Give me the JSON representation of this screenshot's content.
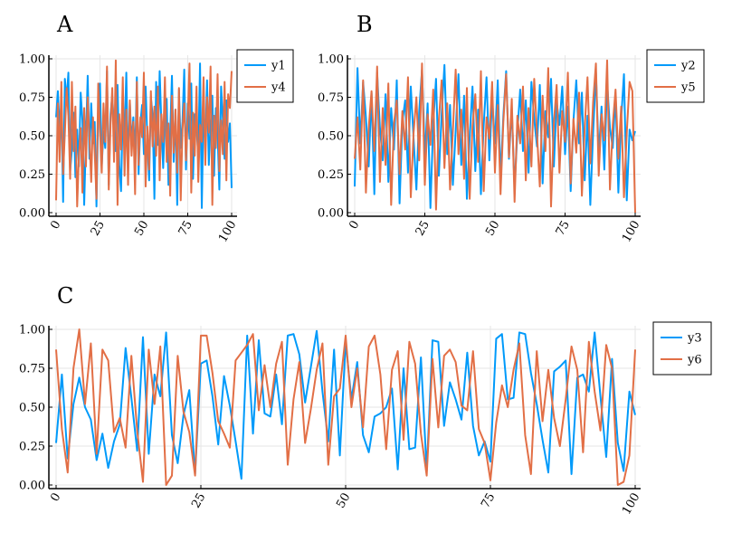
{
  "chart_data": [
    {
      "type": "line",
      "title": "A",
      "xlim": [
        0,
        100
      ],
      "ylim": [
        0,
        1
      ],
      "xticks": [
        "0",
        "25",
        "50",
        "75",
        "100"
      ],
      "yticks": [
        "0.00",
        "0.25",
        "0.50",
        "0.75",
        "1.00"
      ],
      "grid": true,
      "legend_position": "outer-top-right",
      "series": [
        {
          "name": "y1",
          "color": "#009AFA",
          "values": [
            0.62,
            0.79,
            0.55,
            0.71,
            0.07,
            0.87,
            0.73,
            0.91,
            0.27,
            0.41,
            0.65,
            0.23,
            0.54,
            0.3,
            0.78,
            0.6,
            0.05,
            0.48,
            0.89,
            0.35,
            0.71,
            0.45,
            0.59,
            0.04,
            0.66,
            0.84,
            0.3,
            0.53,
            0.42,
            0.92,
            0.18,
            0.64,
            0.76,
            0.55,
            0.4,
            0.83,
            0.31,
            0.14,
            0.68,
            0.5,
            0.91,
            0.27,
            0.72,
            0.45,
            0.62,
            0.35,
            0.88,
            0.25,
            0.58,
            0.7,
            0.38,
            0.82,
            0.47,
            0.21,
            0.75,
            0.63,
            0.09,
            0.85,
            0.44,
            0.92,
            0.57,
            0.29,
            0.61,
            0.74,
            0.18,
            0.52,
            0.89,
            0.33,
            0.67,
            0.05,
            0.8,
            0.42,
            0.59,
            0.93,
            0.28,
            0.71,
            0.48,
            0.84,
            0.22,
            0.64,
            0.55,
            0.37,
            0.97,
            0.03,
            0.69,
            0.43,
            0.86,
            0.31,
            0.57,
            0.76,
            0.24,
            0.68,
            0.51,
            0.15,
            0.82,
            0.6,
            0.35,
            0.73,
            0.46,
            0.58,
            0.16
          ]
        },
        {
          "name": "y4",
          "color": "#E26F46",
          "values": [
            0.08,
            0.71,
            0.33,
            0.85,
            0.25,
            0.52,
            0.81,
            0.63,
            0.22,
            0.85,
            0.4,
            0.69,
            0.04,
            0.37,
            0.55,
            0.13,
            0.68,
            0.3,
            0.75,
            0.49,
            0.2,
            0.62,
            0.39,
            0.09,
            0.84,
            0.53,
            0.26,
            0.71,
            0.46,
            0.95,
            0.15,
            0.57,
            0.81,
            0.33,
            0.99,
            0.05,
            0.64,
            0.41,
            0.88,
            0.24,
            0.67,
            0.18,
            0.73,
            0.37,
            0.59,
            0.12,
            0.85,
            0.31,
            0.62,
            0.49,
            0.91,
            0.17,
            0.56,
            0.28,
            0.79,
            0.43,
            0.69,
            0.37,
            0.82,
            0.21,
            0.64,
            0.46,
            0.88,
            0.33,
            0.58,
            0.11,
            0.76,
            0.39,
            0.67,
            0.26,
            0.81,
            0.08,
            0.54,
            0.71,
            0.34,
            0.61,
            0.97,
            0.13,
            0.65,
            0.37,
            0.82,
            0.2,
            0.57,
            0.46,
            0.88,
            0.31,
            0.75,
            0.52,
            0.95,
            0.05,
            0.63,
            0.42,
            0.9,
            0.27,
            0.6,
            0.38,
            0.85,
            0.21,
            0.77,
            0.68,
            0.92
          ]
        }
      ]
    },
    {
      "type": "line",
      "title": "B",
      "xlim": [
        0,
        100
      ],
      "ylim": [
        0,
        1
      ],
      "xticks": [
        "0",
        "25",
        "50",
        "75",
        "100"
      ],
      "yticks": [
        "0.00",
        "0.25",
        "0.50",
        "0.75",
        "1.00"
      ],
      "grid": true,
      "legend_position": "outer-top-right",
      "series": [
        {
          "name": "y2",
          "color": "#009AFA",
          "values": [
            0.17,
            0.94,
            0.45,
            0.85,
            0.62,
            0.3,
            0.78,
            0.12,
            0.91,
            0.55,
            0.34,
            0.77,
            0.2,
            0.68,
            0.41,
            0.86,
            0.06,
            0.59,
            0.73,
            0.26,
            0.82,
            0.48,
            0.15,
            0.66,
            0.93,
            0.36,
            0.71,
            0.03,
            0.58,
            0.87,
            0.24,
            0.64,
            0.96,
            0.38,
            0.7,
            0.18,
            0.53,
            0.9,
            0.31,
            0.76,
            0.09,
            0.49,
            0.82,
            0.27,
            0.67,
            0.12,
            0.57,
            0.88,
            0.34,
            0.74,
            0.45,
            0.86,
            0.22,
            0.63,
            0.92,
            0.35,
            0.68,
            0.16,
            0.52,
            0.8,
            0.4,
            0.73,
            0.26,
            0.85,
            0.61,
            0.43,
            0.83,
            0.19,
            0.66,
            0.49,
            0.87,
            0.3,
            0.72,
            0.57,
            0.82,
            0.38,
            0.69,
            0.14,
            0.6,
            0.86,
            0.45,
            0.78,
            0.21,
            0.63,
            0.05,
            0.52,
            0.91,
            0.37,
            0.69,
            0.28,
            0.85,
            0.55,
            0.42,
            0.77,
            0.13,
            0.61,
            0.9,
            0.08,
            0.54,
            0.47,
            0.53
          ]
        },
        {
          "name": "y5",
          "color": "#E26F46",
          "values": [
            0.35,
            0.62,
            0.28,
            0.86,
            0.13,
            0.55,
            0.79,
            0.4,
            0.95,
            0.2,
            0.68,
            0.31,
            0.84,
            0.05,
            0.58,
            0.73,
            0.25,
            0.66,
            0.41,
            0.88,
            0.1,
            0.52,
            0.75,
            0.34,
            0.97,
            0.18,
            0.64,
            0.44,
            0.8,
            0.02,
            0.6,
            0.86,
            0.29,
            0.71,
            0.15,
            0.53,
            0.93,
            0.38,
            0.67,
            0.22,
            0.81,
            0.09,
            0.56,
            0.77,
            0.33,
            0.92,
            0.14,
            0.62,
            0.48,
            0.85,
            0.26,
            0.7,
            0.12,
            0.59,
            0.9,
            0.36,
            0.74,
            0.07,
            0.63,
            0.45,
            0.82,
            0.21,
            0.68,
            0.3,
            0.87,
            0.51,
            0.17,
            0.76,
            0.4,
            0.94,
            0.04,
            0.58,
            0.83,
            0.26,
            0.66,
            0.46,
            0.91,
            0.19,
            0.61,
            0.39,
            0.78,
            0.11,
            0.55,
            0.88,
            0.32,
            0.72,
            0.97,
            0.24,
            0.64,
            0.47,
            0.99,
            0.15,
            0.57,
            0.8,
            0.35,
            0.69,
            0.1,
            0.52,
            0.85,
            0.79,
            0.0
          ]
        }
      ]
    },
    {
      "type": "line",
      "title": "C",
      "xlim": [
        0,
        100
      ],
      "ylim": [
        0,
        1
      ],
      "xticks": [
        "0",
        "25",
        "50",
        "75",
        "100"
      ],
      "yticks": [
        "0.00",
        "0.25",
        "0.50",
        "0.75",
        "1.00"
      ],
      "grid": true,
      "legend_position": "outer-top-right",
      "series": [
        {
          "name": "y3",
          "color": "#009AFA",
          "values": [
            0.27,
            0.71,
            0.17,
            0.52,
            0.69,
            0.5,
            0.42,
            0.16,
            0.33,
            0.11,
            0.28,
            0.39,
            0.88,
            0.56,
            0.22,
            0.95,
            0.2,
            0.71,
            0.57,
            0.98,
            0.32,
            0.14,
            0.45,
            0.61,
            0.07,
            0.78,
            0.8,
            0.57,
            0.26,
            0.7,
            0.51,
            0.28,
            0.04,
            0.96,
            0.33,
            0.93,
            0.46,
            0.44,
            0.71,
            0.39,
            0.96,
            0.97,
            0.84,
            0.53,
            0.76,
            0.99,
            0.6,
            0.28,
            0.87,
            0.19,
            0.92,
            0.55,
            0.79,
            0.32,
            0.21,
            0.44,
            0.46,
            0.5,
            0.62,
            0.1,
            0.75,
            0.23,
            0.24,
            0.82,
            0.09,
            0.93,
            0.92,
            0.38,
            0.66,
            0.55,
            0.42,
            0.85,
            0.38,
            0.19,
            0.28,
            0.15,
            0.94,
            0.97,
            0.55,
            0.56,
            0.98,
            0.97,
            0.72,
            0.52,
            0.29,
            0.08,
            0.73,
            0.76,
            0.8,
            0.07,
            0.69,
            0.71,
            0.6,
            0.98,
            0.57,
            0.18,
            0.81,
            0.27,
            0.09,
            0.6,
            0.45
          ]
        },
        {
          "name": "y6",
          "color": "#E26F46",
          "values": [
            0.87,
            0.36,
            0.08,
            0.75,
            1.0,
            0.52,
            0.91,
            0.2,
            0.87,
            0.8,
            0.34,
            0.43,
            0.24,
            0.83,
            0.35,
            0.02,
            0.87,
            0.52,
            0.89,
            0.0,
            0.06,
            0.83,
            0.47,
            0.34,
            0.06,
            0.96,
            0.96,
            0.72,
            0.41,
            0.33,
            0.24,
            0.8,
            0.85,
            0.9,
            0.97,
            0.48,
            0.77,
            0.5,
            0.78,
            0.92,
            0.13,
            0.55,
            0.79,
            0.27,
            0.49,
            0.74,
            0.91,
            0.13,
            0.57,
            0.62,
            0.96,
            0.5,
            0.75,
            0.37,
            0.89,
            0.96,
            0.71,
            0.23,
            0.74,
            0.86,
            0.29,
            0.92,
            0.78,
            0.33,
            0.06,
            0.81,
            0.37,
            0.83,
            0.87,
            0.79,
            0.51,
            0.48,
            0.86,
            0.36,
            0.27,
            0.03,
            0.4,
            0.64,
            0.5,
            0.74,
            0.91,
            0.32,
            0.07,
            0.86,
            0.41,
            0.74,
            0.43,
            0.25,
            0.55,
            0.89,
            0.74,
            0.21,
            0.92,
            0.6,
            0.35,
            0.9,
            0.75,
            0.0,
            0.02,
            0.19,
            0.87
          ]
        }
      ]
    }
  ]
}
